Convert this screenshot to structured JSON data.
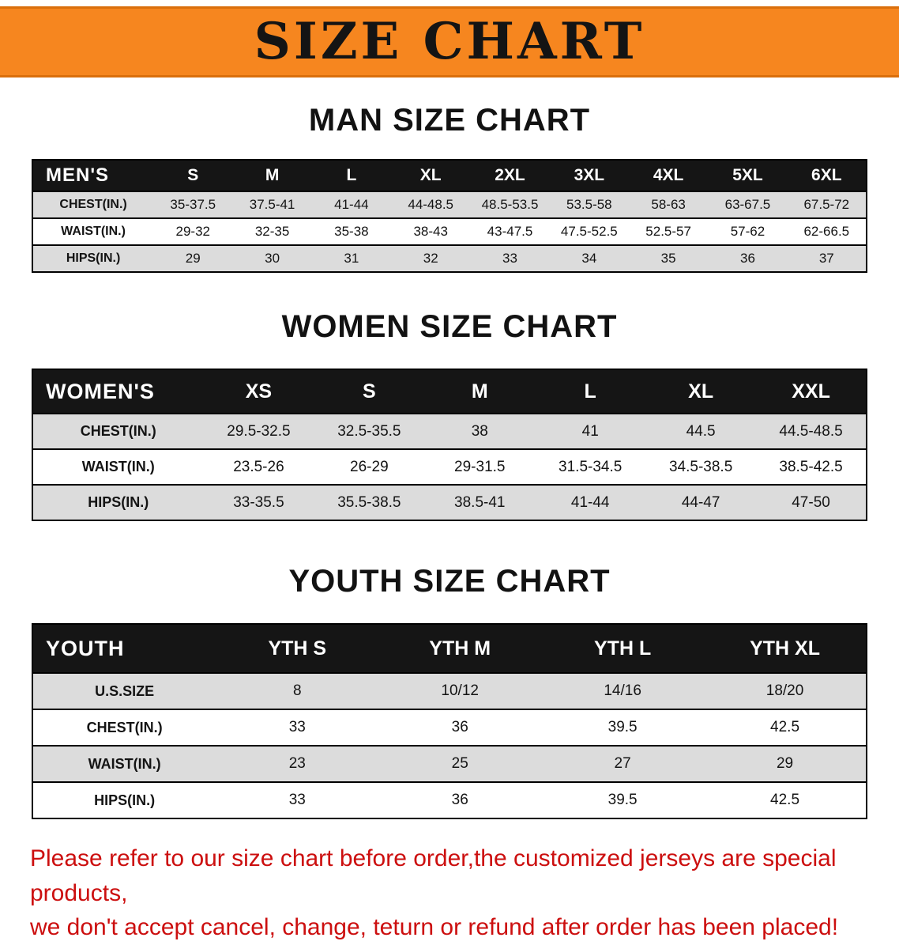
{
  "banner": {
    "title": "SIZE CHART"
  },
  "sections": [
    {
      "heading": "MAN SIZE CHART",
      "table": {
        "header": [
          "MEN'S",
          "S",
          "M",
          "L",
          "XL",
          "2XL",
          "3XL",
          "4XL",
          "5XL",
          "6XL"
        ],
        "rows": [
          [
            "CHEST(IN.)",
            "35-37.5",
            "37.5-41",
            "41-44",
            "44-48.5",
            "48.5-53.5",
            "53.5-58",
            "58-63",
            "63-67.5",
            "67.5-72"
          ],
          [
            "WAIST(IN.)",
            "29-32",
            "32-35",
            "35-38",
            "38-43",
            "43-47.5",
            "47.5-52.5",
            "52.5-57",
            "57-62",
            "62-66.5"
          ],
          [
            "HIPS(IN.)",
            "29",
            "30",
            "31",
            "32",
            "33",
            "34",
            "35",
            "36",
            "37"
          ]
        ]
      }
    },
    {
      "heading": "WOMEN SIZE CHART",
      "table": {
        "header": [
          "WOMEN'S",
          "XS",
          "S",
          "M",
          "L",
          "XL",
          "XXL"
        ],
        "rows": [
          [
            "CHEST(IN.)",
            "29.5-32.5",
            "32.5-35.5",
            "38",
            "41",
            "44.5",
            "44.5-48.5"
          ],
          [
            "WAIST(IN.)",
            "23.5-26",
            "26-29",
            "29-31.5",
            "31.5-34.5",
            "34.5-38.5",
            "38.5-42.5"
          ],
          [
            "HIPS(IN.)",
            "33-35.5",
            "35.5-38.5",
            "38.5-41",
            "41-44",
            "44-47",
            "47-50"
          ]
        ]
      }
    },
    {
      "heading": "YOUTH SIZE CHART",
      "table": {
        "header": [
          "YOUTH",
          "YTH S",
          "YTH M",
          "YTH L",
          "YTH XL"
        ],
        "rows": [
          [
            "U.S.SIZE",
            "8",
            "10/12",
            "14/16",
            "18/20"
          ],
          [
            "CHEST(IN.)",
            "33",
            "36",
            "39.5",
            "42.5"
          ],
          [
            "WAIST(IN.)",
            "23",
            "25",
            "27",
            "29"
          ],
          [
            "HIPS(IN.)",
            "33",
            "36",
            "39.5",
            "42.5"
          ]
        ]
      }
    }
  ],
  "disclaimer": {
    "line1": "Please refer to our size chart before order,the customized jerseys are special products,",
    "line2": "we don't accept cancel, change, teturn or refund after order has been placed!"
  },
  "colors": {
    "banner_bg": "#f6861f",
    "banner_text": "#141414",
    "table_header_bg": "#151515",
    "table_header_text": "#ffffff",
    "row_stripe": "#dcdcdc",
    "disclaimer_text": "#cc0f0f"
  }
}
